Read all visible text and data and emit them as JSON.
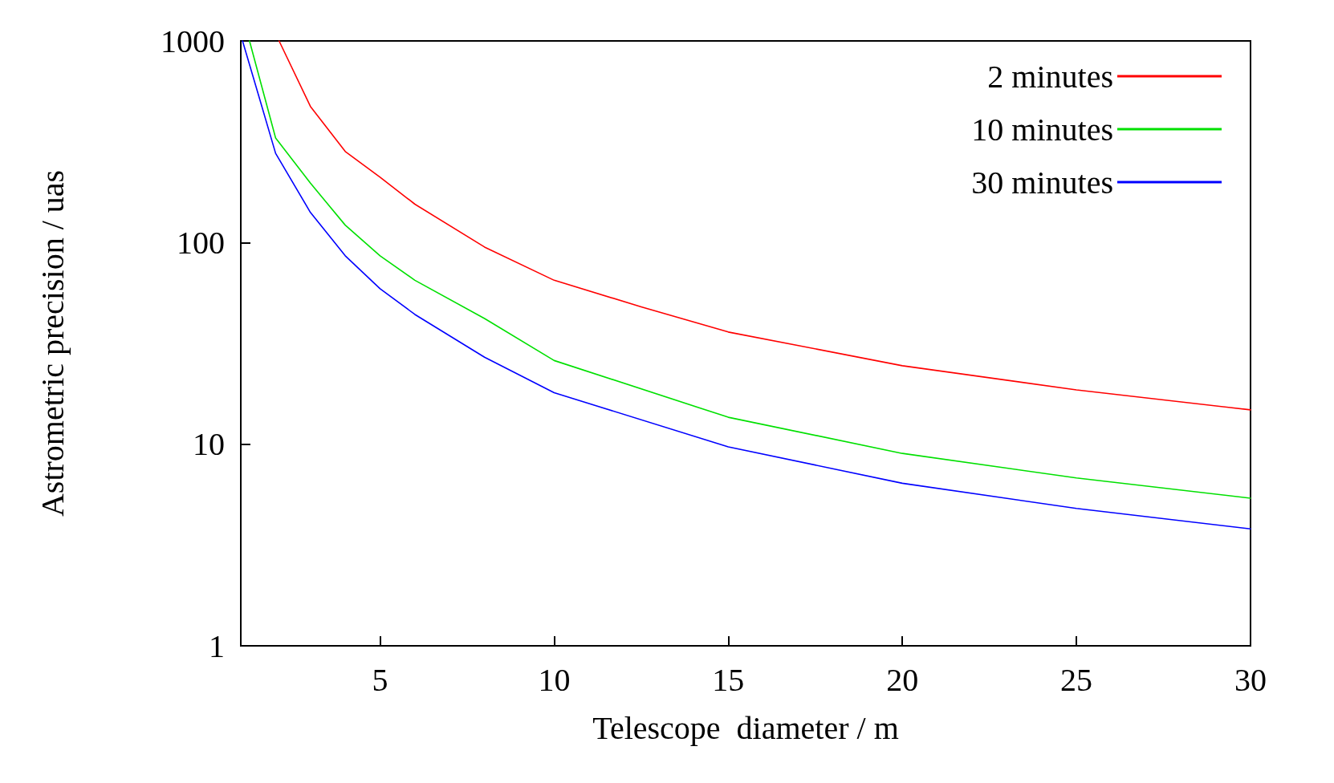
{
  "chart_data": {
    "type": "line",
    "xlabel": "Telescope  diameter / m",
    "ylabel": "Astrometric precision / uas",
    "log": true,
    "grid": false,
    "legend": "top right",
    "xlim": [
      1,
      30
    ],
    "xticks": [
      5,
      10,
      15,
      20,
      25,
      30
    ],
    "ylim": [
      1,
      1000
    ],
    "yticks": [
      1,
      10,
      100,
      1000
    ],
    "series": [
      {
        "name": "2 minutes",
        "color": "#ff0000",
        "x": [
          2.1,
          3,
          4,
          5,
          6,
          8,
          10,
          12.5,
          15,
          20,
          25,
          30
        ],
        "values": [
          1000,
          473,
          283,
          211,
          155,
          95,
          65,
          48,
          36,
          24.5,
          18.6,
          14.8
        ]
      },
      {
        "name": "10 minutes",
        "color": "#00e000",
        "x": [
          1.25,
          2,
          3,
          4,
          5,
          6,
          8,
          10,
          15,
          20,
          25,
          30
        ],
        "values": [
          1000,
          330,
          197,
          122,
          86,
          65,
          42,
          26,
          13.6,
          9,
          6.8,
          5.4
        ]
      },
      {
        "name": "30 minutes",
        "color": "#0000ff",
        "x": [
          1.05,
          1.5,
          2,
          3,
          4,
          5,
          6,
          8,
          10,
          15,
          20,
          25,
          30
        ],
        "values": [
          1000,
          545,
          277,
          141,
          86,
          59,
          44,
          27,
          18,
          9.7,
          6.4,
          4.8,
          3.8
        ]
      }
    ]
  }
}
